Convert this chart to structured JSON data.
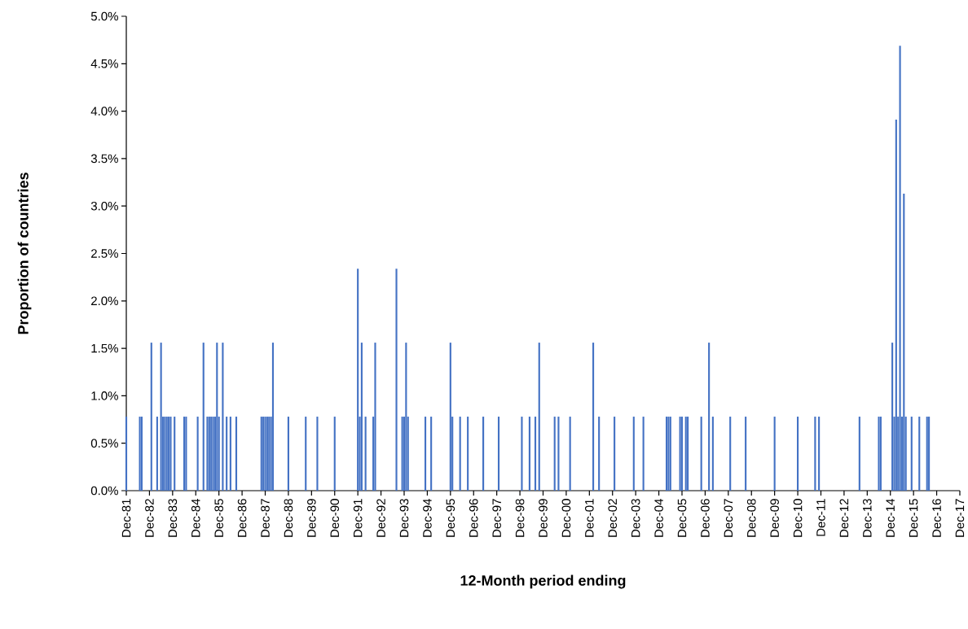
{
  "chart_data": {
    "type": "bar",
    "xlabel": "12-Month period ending",
    "ylabel": "Proportion of countries",
    "color": "#4472c4",
    "x": [
      "1981-12",
      "1982-07",
      "1982-08",
      "1983-01",
      "1983-04",
      "1983-06",
      "1983-07",
      "1983-08",
      "1983-09",
      "1983-10",
      "1983-11",
      "1984-01",
      "1984-06",
      "1984-07",
      "1985-01",
      "1985-04",
      "1985-06",
      "1985-07",
      "1985-08",
      "1985-09",
      "1985-10",
      "1985-11",
      "1985-12",
      "1986-02",
      "1986-04",
      "1986-06",
      "1986-09",
      "1987-10",
      "1987-11",
      "1987-12",
      "1988-01",
      "1988-02",
      "1988-03",
      "1988-04",
      "1988-12",
      "1989-09",
      "1990-03",
      "1990-12",
      "1991-12",
      "1992-01",
      "1992-02",
      "1992-04",
      "1992-08",
      "1992-09",
      "1993-08",
      "1993-11",
      "1993-12",
      "1994-01",
      "1994-02",
      "1994-11",
      "1995-02",
      "1995-12",
      "1996-01",
      "1996-05",
      "1996-09",
      "1997-05",
      "1998-01",
      "1999-01",
      "1999-05",
      "1999-08",
      "1999-10",
      "2000-06",
      "2000-08",
      "2001-02",
      "2002-02",
      "2002-05",
      "2003-01",
      "2003-11",
      "2004-04",
      "2005-04",
      "2005-05",
      "2005-06",
      "2005-11",
      "2005-12",
      "2006-02",
      "2006-03",
      "2006-10",
      "2007-02",
      "2007-04",
      "2008-01",
      "2008-09",
      "2009-12",
      "2010-12",
      "2011-09",
      "2011-11",
      "2013-08",
      "2014-06",
      "2014-07",
      "2015-01",
      "2015-02",
      "2015-03",
      "2015-04",
      "2015-05",
      "2015-06",
      "2015-07",
      "2015-08",
      "2015-11",
      "2016-03",
      "2016-07",
      "2016-08"
    ],
    "values": [
      0.78,
      0.78,
      0.78,
      1.56,
      0.78,
      1.56,
      0.78,
      0.78,
      0.78,
      0.78,
      0.78,
      0.78,
      0.78,
      0.78,
      0.78,
      1.56,
      0.78,
      0.78,
      0.78,
      0.78,
      0.78,
      1.56,
      0.78,
      1.56,
      0.78,
      0.78,
      0.78,
      0.78,
      0.78,
      0.78,
      0.78,
      0.78,
      0.78,
      1.56,
      0.78,
      0.78,
      0.78,
      0.78,
      2.34,
      0.78,
      1.56,
      0.78,
      0.78,
      1.56,
      2.34,
      0.78,
      0.78,
      1.56,
      0.78,
      0.78,
      0.78,
      1.56,
      0.78,
      0.78,
      0.78,
      0.78,
      0.78,
      0.78,
      0.78,
      0.78,
      1.56,
      0.78,
      0.78,
      0.78,
      1.56,
      0.78,
      0.78,
      0.78,
      0.78,
      0.78,
      0.78,
      0.78,
      0.78,
      0.78,
      0.78,
      0.78,
      0.78,
      1.56,
      0.78,
      0.78,
      0.78,
      0.78,
      0.78,
      0.78,
      0.78,
      0.78,
      0.78,
      0.78,
      1.56,
      0.78,
      3.91,
      0.78,
      4.69,
      0.78,
      3.13,
      0.78,
      0.78,
      0.78,
      0.78,
      0.78
    ],
    "xlim": [
      "1981-12",
      "2017-12"
    ],
    "xticks": [
      {
        "value": "1981-12",
        "label": "Dec-81"
      },
      {
        "value": "1982-12",
        "label": "Dec-82"
      },
      {
        "value": "1983-12",
        "label": "Dec-83"
      },
      {
        "value": "1984-12",
        "label": "Dec-84"
      },
      {
        "value": "1985-12",
        "label": "Dec-85"
      },
      {
        "value": "1986-12",
        "label": "Dec-86"
      },
      {
        "value": "1987-12",
        "label": "Dec-87"
      },
      {
        "value": "1988-12",
        "label": "Dec-88"
      },
      {
        "value": "1989-12",
        "label": "Dec-89"
      },
      {
        "value": "1990-12",
        "label": "Dec-90"
      },
      {
        "value": "1991-12",
        "label": "Dec-91"
      },
      {
        "value": "1992-12",
        "label": "Dec-92"
      },
      {
        "value": "1993-12",
        "label": "Dec-93"
      },
      {
        "value": "1994-12",
        "label": "Dec-94"
      },
      {
        "value": "1995-12",
        "label": "Dec-95"
      },
      {
        "value": "1996-12",
        "label": "Dec-96"
      },
      {
        "value": "1997-12",
        "label": "Dec-97"
      },
      {
        "value": "1998-12",
        "label": "Dec-98"
      },
      {
        "value": "1999-12",
        "label": "Dec-99"
      },
      {
        "value": "2000-12",
        "label": "Dec-00"
      },
      {
        "value": "2001-12",
        "label": "Dec-01"
      },
      {
        "value": "2002-12",
        "label": "Dec-02"
      },
      {
        "value": "2003-12",
        "label": "Dec-03"
      },
      {
        "value": "2004-12",
        "label": "Dec-04"
      },
      {
        "value": "2005-12",
        "label": "Dec-05"
      },
      {
        "value": "2006-12",
        "label": "Dec-06"
      },
      {
        "value": "2007-12",
        "label": "Dec-07"
      },
      {
        "value": "2008-12",
        "label": "Dec-08"
      },
      {
        "value": "2009-12",
        "label": "Dec-09"
      },
      {
        "value": "2010-12",
        "label": "Dec-10"
      },
      {
        "value": "2011-12",
        "label": "Dec-11"
      },
      {
        "value": "2012-12",
        "label": "Dec-12"
      },
      {
        "value": "2013-12",
        "label": "Dec-13"
      },
      {
        "value": "2014-12",
        "label": "Dec-14"
      },
      {
        "value": "2015-12",
        "label": "Dec-15"
      },
      {
        "value": "2016-12",
        "label": "Dec-16"
      },
      {
        "value": "2017-12",
        "label": "Dec-17"
      }
    ],
    "ylim": [
      0,
      5
    ],
    "yticks": [
      {
        "value": 0,
        "label": "0.0%"
      },
      {
        "value": 0.5,
        "label": "0.5%"
      },
      {
        "value": 1,
        "label": "1.0%"
      },
      {
        "value": 1.5,
        "label": "1.5%"
      },
      {
        "value": 2,
        "label": "2.0%"
      },
      {
        "value": 2.5,
        "label": "2.5%"
      },
      {
        "value": 3,
        "label": "3.0%"
      },
      {
        "value": 3.5,
        "label": "3.5%"
      },
      {
        "value": 4,
        "label": "4.0%"
      },
      {
        "value": 4.5,
        "label": "4.5%"
      },
      {
        "value": 5,
        "label": "5.0%"
      }
    ]
  }
}
